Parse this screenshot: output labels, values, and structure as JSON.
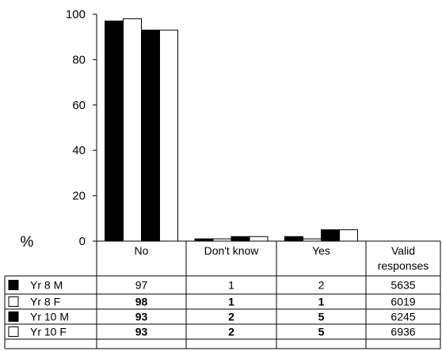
{
  "chart_data": {
    "type": "bar",
    "categories": [
      "No",
      "Don't know",
      "Yes"
    ],
    "series": [
      {
        "name": "Yr 8 M",
        "values": [
          97,
          1,
          2
        ],
        "fill": "#000000"
      },
      {
        "name": "Yr 8 F",
        "values": [
          98,
          1,
          1
        ],
        "fill": "#ffffff"
      },
      {
        "name": "Yr 10 M",
        "values": [
          93,
          2,
          5
        ],
        "fill": "#000000"
      },
      {
        "name": "Yr 10 F",
        "values": [
          93,
          2,
          5
        ],
        "fill": "#ffffff"
      }
    ],
    "ylim": [
      0,
      100
    ],
    "yticks": [
      0,
      20,
      40,
      60,
      80,
      100
    ],
    "ylabel": "%",
    "grid": false,
    "table": {
      "extra_column_header": [
        "Valid",
        "responses"
      ],
      "valid_responses": [
        5635,
        6019,
        6245,
        6936
      ]
    }
  }
}
